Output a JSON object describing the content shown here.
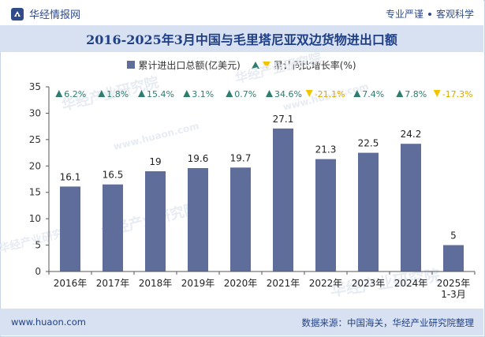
{
  "header": {
    "brand_name": "华经情报网",
    "tagline_left": "专业严谨",
    "tagline_right": "客观科学"
  },
  "title": "2016-2025年3月中国与毛里塔尼亚双边货物进出口额",
  "legend": {
    "bar_label": "累计进出口总额(亿美元)",
    "rate_label": "累计同比增长率(%)"
  },
  "footer": {
    "website": "www.huaon.com",
    "source": "数据来源：中国海关，华经产业研究院整理"
  },
  "watermarks": [
    "华经产业研究院",
    "www.huaon.com"
  ],
  "colors": {
    "bar": "#5f6d9a",
    "up": "#2e7d6e",
    "down": "#f2c400",
    "title": "#1f3f86"
  },
  "chart_data": {
    "type": "bar",
    "categories": [
      "2016年",
      "2017年",
      "2018年",
      "2019年",
      "2020年",
      "2021年",
      "2022年",
      "2023年",
      "2024年",
      "2025年\n1-3月"
    ],
    "series": [
      {
        "name": "累计进出口总额(亿美元)",
        "values": [
          16.1,
          16.5,
          19,
          19.6,
          19.7,
          27.1,
          21.3,
          22.5,
          24.2,
          5
        ]
      }
    ],
    "value_labels": [
      "16.1",
      "16.5",
      "19",
      "19.6",
      "19.7",
      "27.1",
      "21.3",
      "22.5",
      "24.2",
      "5"
    ],
    "growth": {
      "name": "累计同比增长率(%)",
      "values": [
        6.2,
        1.8,
        15.4,
        3.1,
        0.7,
        34.6,
        -21.1,
        7.4,
        7.8,
        -17.3
      ],
      "labels": [
        "6.2%",
        "1.8%",
        "15.4%",
        "3.1%",
        "0.7%",
        "34.6%",
        "-21.1%",
        "7.4%",
        "7.8%",
        "-17.3%"
      ]
    },
    "ylim": [
      0,
      35
    ],
    "yticks": [
      "0",
      "5",
      "10",
      "15",
      "20",
      "25",
      "30",
      "35"
    ],
    "grid": false,
    "legend_position": "top"
  }
}
